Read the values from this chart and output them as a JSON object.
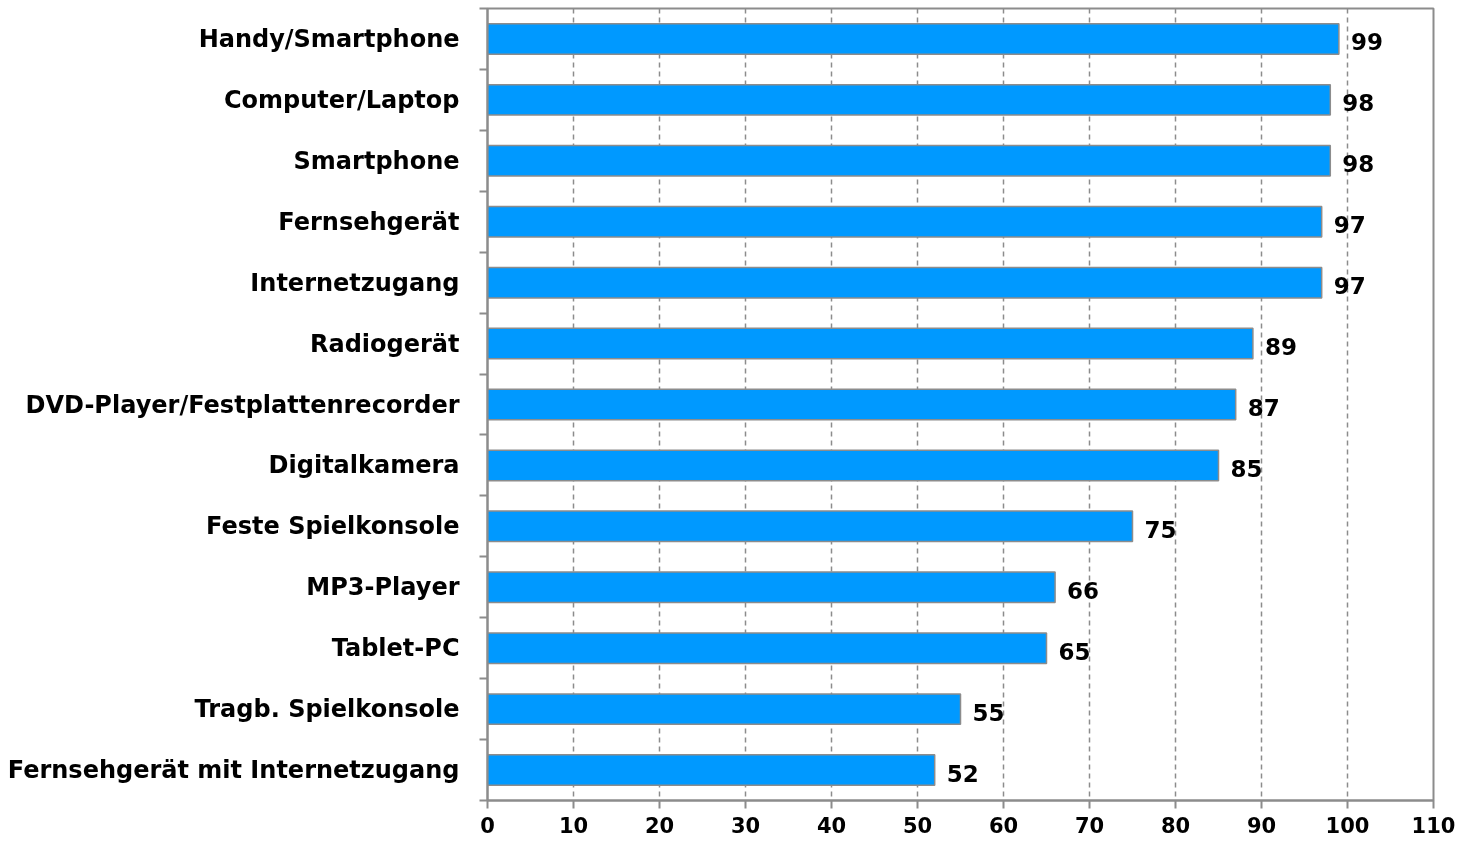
{
  "chart_data": {
    "type": "bar",
    "orientation": "horizontal",
    "categories": [
      "Handy/Smartphone",
      "Computer/Laptop",
      "Smartphone",
      "Fernsehgerät",
      "Internetzugang",
      "Radiogerät",
      "DVD-Player/Festplattenrecorder",
      "Digitalkamera",
      "Feste Spielkonsole",
      "MP3-Player",
      "Tablet-PC",
      "Tragb. Spielkonsole",
      "Fernsehgerät mit Internetzugang"
    ],
    "values": [
      99,
      98,
      98,
      97,
      97,
      89,
      87,
      85,
      75,
      66,
      65,
      55,
      52
    ],
    "color": "#0099ff",
    "xlim": [
      0,
      110
    ],
    "xticks": [
      0,
      10,
      20,
      30,
      40,
      50,
      60,
      70,
      80,
      90,
      100,
      110
    ],
    "grid": "x",
    "data_labels": true
  }
}
